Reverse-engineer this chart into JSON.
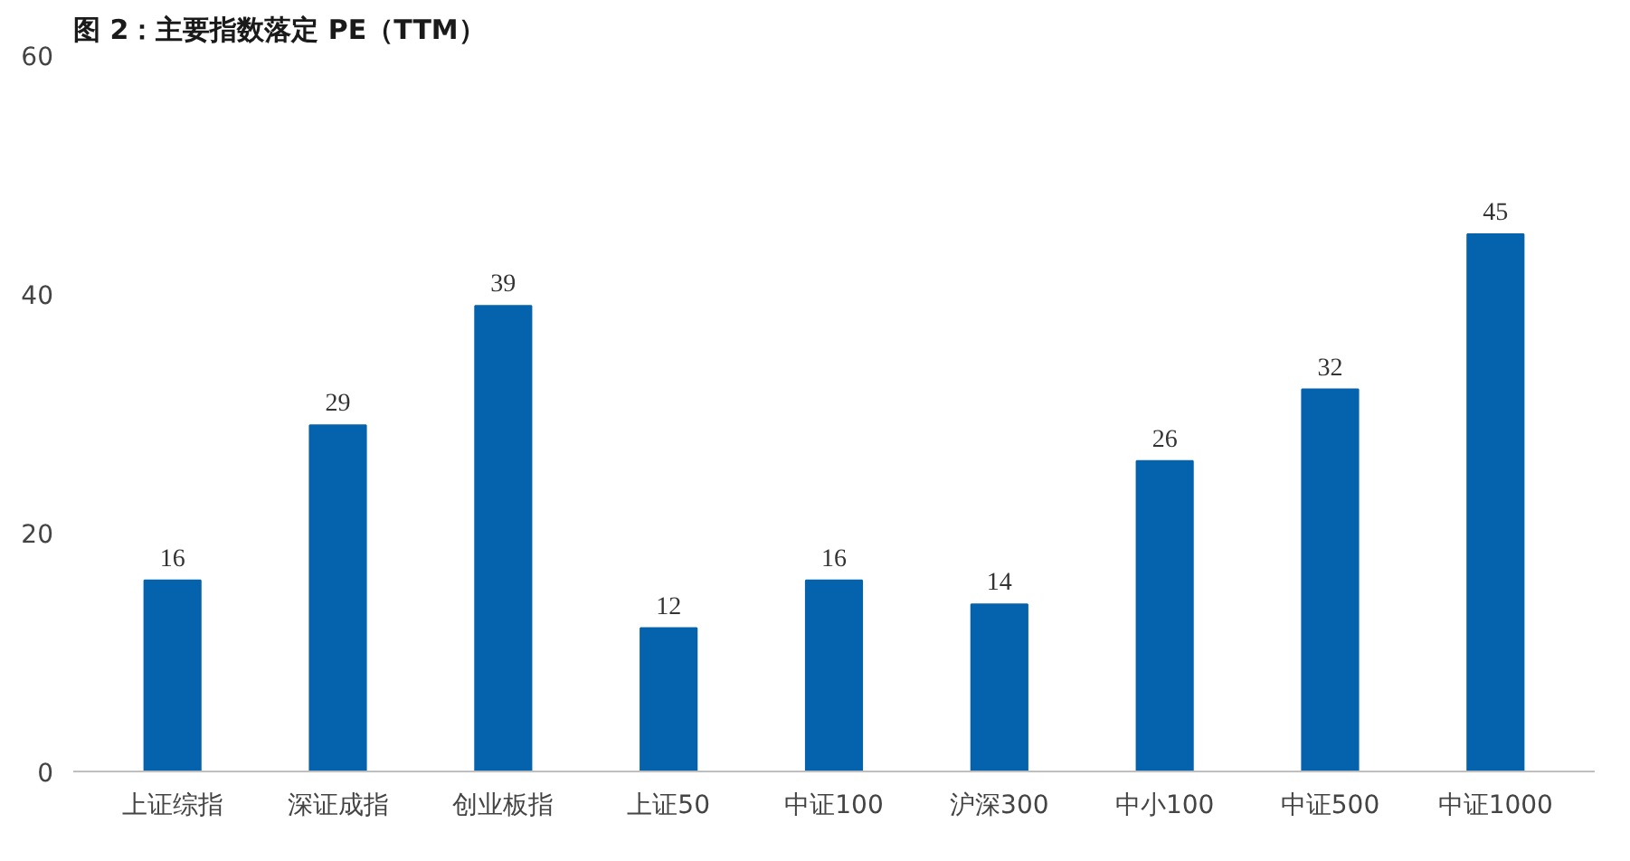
{
  "chart_data": {
    "type": "bar",
    "title": "图 2：主要指数落定 PE（TTM）",
    "categories": [
      "上证综指",
      "深证成指",
      "创业板指",
      "上证50",
      "中证100",
      "沪深300",
      "中小100",
      "中证500",
      "中证1000"
    ],
    "values": [
      16,
      29,
      39,
      12,
      16,
      14,
      26,
      32,
      45
    ],
    "color": "#0563ad",
    "ylim": [
      0,
      60
    ],
    "yticks": [
      0,
      20,
      40,
      60
    ],
    "grid": false,
    "data_labels": true
  }
}
